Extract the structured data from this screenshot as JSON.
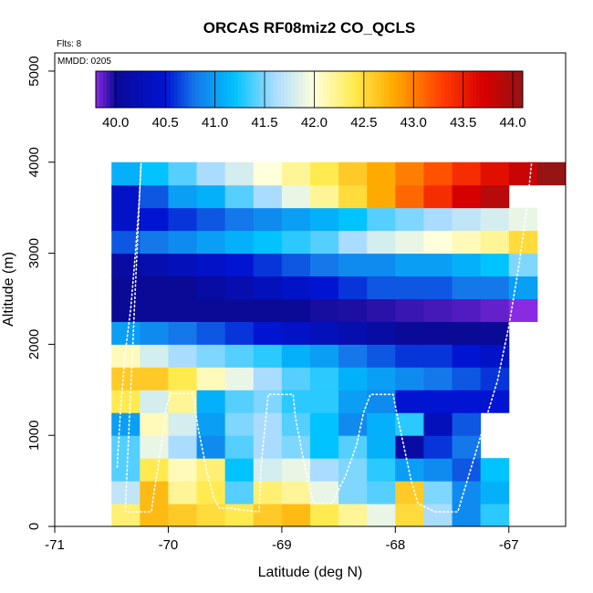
{
  "chart_data": {
    "type": "heatmap",
    "title": "ORCAS RF08miz2 CO_QCLS",
    "xlabel": "Latitude (deg N)",
    "ylabel": "Altitude (m)",
    "flights_label": "Flts: 8",
    "mmdd_label": "MMDD: 0205",
    "xlim": [
      -71,
      -66.5
    ],
    "ylim": [
      0,
      5200
    ],
    "x_ticks": [
      -71,
      -70,
      -69,
      -68,
      -67
    ],
    "x_tick_labels": [
      "-71",
      "-70",
      "-69",
      "-68",
      "-67"
    ],
    "y_ticks": [
      0,
      1000,
      2000,
      3000,
      4000,
      5000
    ],
    "y_tick_labels": [
      "0",
      "1000",
      "2000",
      "3000",
      "4000",
      "5000"
    ],
    "colorbar": {
      "range": [
        39.8,
        44.1
      ],
      "ticks": [
        40.0,
        40.5,
        41.0,
        41.5,
        42.0,
        42.5,
        43.0,
        43.5,
        44.0
      ],
      "tick_labels": [
        "40.0",
        "40.5",
        "41.0",
        "41.5",
        "42.0",
        "42.5",
        "43.0",
        "43.5",
        "44.0"
      ]
    },
    "bin_width_deg": 0.25,
    "bin_height_m": 250,
    "bin_x_start": -70.5,
    "rows": [
      {
        "alt": 0,
        "values": [
          42.3,
          42.7,
          42.6,
          42.5,
          42.4,
          42.6,
          42.7,
          42.4,
          42.2,
          41.9,
          42.5,
          41.6,
          40.9,
          41.3
        ]
      },
      {
        "alt": 250,
        "values": [
          41.7,
          42.7,
          42.2,
          42.4,
          41.4,
          42.3,
          42.2,
          41.9,
          41.5,
          41.4,
          42.6,
          41.5,
          40.9,
          41.1
        ]
      },
      {
        "alt": 500,
        "values": [
          41.4,
          42.4,
          42.1,
          42.3,
          41.2,
          41.8,
          41.9,
          41.6,
          41.5,
          41.3,
          41.0,
          40.9,
          40.7,
          41.2
        ]
      },
      {
        "alt": 750,
        "values": [
          41.4,
          41.9,
          41.6,
          40.9,
          41.4,
          41.6,
          41.5,
          41.2,
          41.4,
          41.1,
          40.1,
          40.6,
          40.8
        ]
      },
      {
        "alt": 1000,
        "values": [
          41.0,
          42.1,
          41.8,
          41.0,
          41.5,
          41.6,
          41.4,
          41.2,
          40.9,
          41.1,
          41.3,
          40.3,
          40.7
        ]
      },
      {
        "alt": 1250,
        "values": [
          42.4,
          41.8,
          42.2,
          41.1,
          41.4,
          41.5,
          41.3,
          41.3,
          41.0,
          40.9,
          40.5,
          40.5,
          40.5,
          40.5
        ]
      },
      {
        "alt": 1500,
        "values": [
          42.6,
          42.6,
          42.4,
          42.1,
          41.9,
          41.6,
          41.4,
          41.3,
          41.1,
          41.0,
          40.9,
          40.8,
          40.7,
          40.6
        ]
      },
      {
        "alt": 1750,
        "values": [
          42.1,
          41.8,
          41.6,
          41.5,
          41.4,
          41.3,
          41.1,
          41.0,
          40.8,
          40.7,
          40.6,
          40.6,
          40.5,
          40.4
        ]
      },
      {
        "alt": 2000,
        "values": [
          41.0,
          40.9,
          40.8,
          40.7,
          40.6,
          40.5,
          40.4,
          40.3,
          40.2,
          40.1,
          40.0,
          40.0,
          40.0,
          40.0
        ]
      },
      {
        "alt": 2250,
        "values": [
          40.0,
          40.0,
          40.0,
          40.0,
          40.0,
          40.0,
          40.0,
          39.98,
          39.97,
          39.95,
          39.93,
          39.91,
          39.89,
          39.86,
          39.8
        ]
      },
      {
        "alt": 2500,
        "values": [
          40.0,
          40.0,
          40.0,
          40.1,
          40.2,
          40.3,
          40.4,
          40.5,
          40.6,
          40.7,
          40.7,
          40.7,
          40.8,
          40.8,
          41.0
        ]
      },
      {
        "alt": 2750,
        "values": [
          40.1,
          40.2,
          40.3,
          40.4,
          40.5,
          40.6,
          40.7,
          40.8,
          40.9,
          40.9,
          41.0,
          41.0,
          41.1,
          41.2,
          41.5
        ]
      },
      {
        "alt": 3000,
        "values": [
          40.7,
          40.8,
          40.9,
          41.0,
          41.1,
          41.2,
          41.3,
          41.4,
          41.6,
          41.8,
          41.9,
          42.0,
          42.1,
          42.2,
          42.5
        ]
      },
      {
        "alt": 3250,
        "values": [
          40.4,
          40.5,
          40.6,
          40.7,
          40.8,
          40.9,
          41.0,
          41.1,
          41.2,
          41.4,
          41.5,
          41.6,
          41.7,
          41.8,
          41.9
        ]
      },
      {
        "alt": 3500,
        "values": [
          40.4,
          40.7,
          41.0,
          41.1,
          41.4,
          41.6,
          41.9,
          42.2,
          42.5,
          42.8,
          43.1,
          43.4,
          43.7,
          43.9
        ]
      },
      {
        "alt": 3750,
        "values": [
          41.1,
          41.2,
          41.4,
          41.6,
          41.8,
          42.0,
          42.2,
          42.4,
          42.6,
          42.8,
          43.0,
          43.2,
          43.4,
          43.6,
          43.8,
          44.1
        ]
      }
    ],
    "flight_track": [
      [
        -70.45,
        650
      ],
      [
        -70.42,
        1300
      ],
      [
        -70.38,
        1900
      ],
      [
        -70.33,
        2400
      ],
      [
        -70.29,
        3000
      ],
      [
        -70.26,
        3500
      ],
      [
        -70.24,
        3990
      ],
      [
        -70.38,
        160
      ],
      [
        -70.15,
        160
      ],
      [
        -70.12,
        420
      ],
      [
        -70.06,
        900
      ],
      [
        -70.02,
        1300
      ],
      [
        -69.98,
        1460
      ],
      [
        -69.78,
        1460
      ],
      [
        -69.74,
        1100
      ],
      [
        -69.66,
        600
      ],
      [
        -69.6,
        320
      ],
      [
        -69.55,
        200
      ],
      [
        -69.45,
        200
      ],
      [
        -69.35,
        180
      ],
      [
        -69.2,
        160
      ],
      [
        -69.18,
        700
      ],
      [
        -69.14,
        1200
      ],
      [
        -69.12,
        1450
      ],
      [
        -68.9,
        1450
      ],
      [
        -68.88,
        1200
      ],
      [
        -68.82,
        800
      ],
      [
        -68.76,
        450
      ],
      [
        -68.72,
        250
      ],
      [
        -68.56,
        250
      ],
      [
        -68.44,
        550
      ],
      [
        -68.34,
        900
      ],
      [
        -68.28,
        1250
      ],
      [
        -68.22,
        1450
      ],
      [
        -68.02,
        1450
      ],
      [
        -67.98,
        1200
      ],
      [
        -67.92,
        850
      ],
      [
        -67.86,
        500
      ],
      [
        -67.8,
        250
      ],
      [
        -67.65,
        160
      ],
      [
        -67.45,
        160
      ],
      [
        -67.1,
        1600
      ],
      [
        -67.0,
        2200
      ],
      [
        -66.92,
        2800
      ],
      [
        -66.85,
        3400
      ],
      [
        -66.8,
        3990
      ]
    ]
  }
}
